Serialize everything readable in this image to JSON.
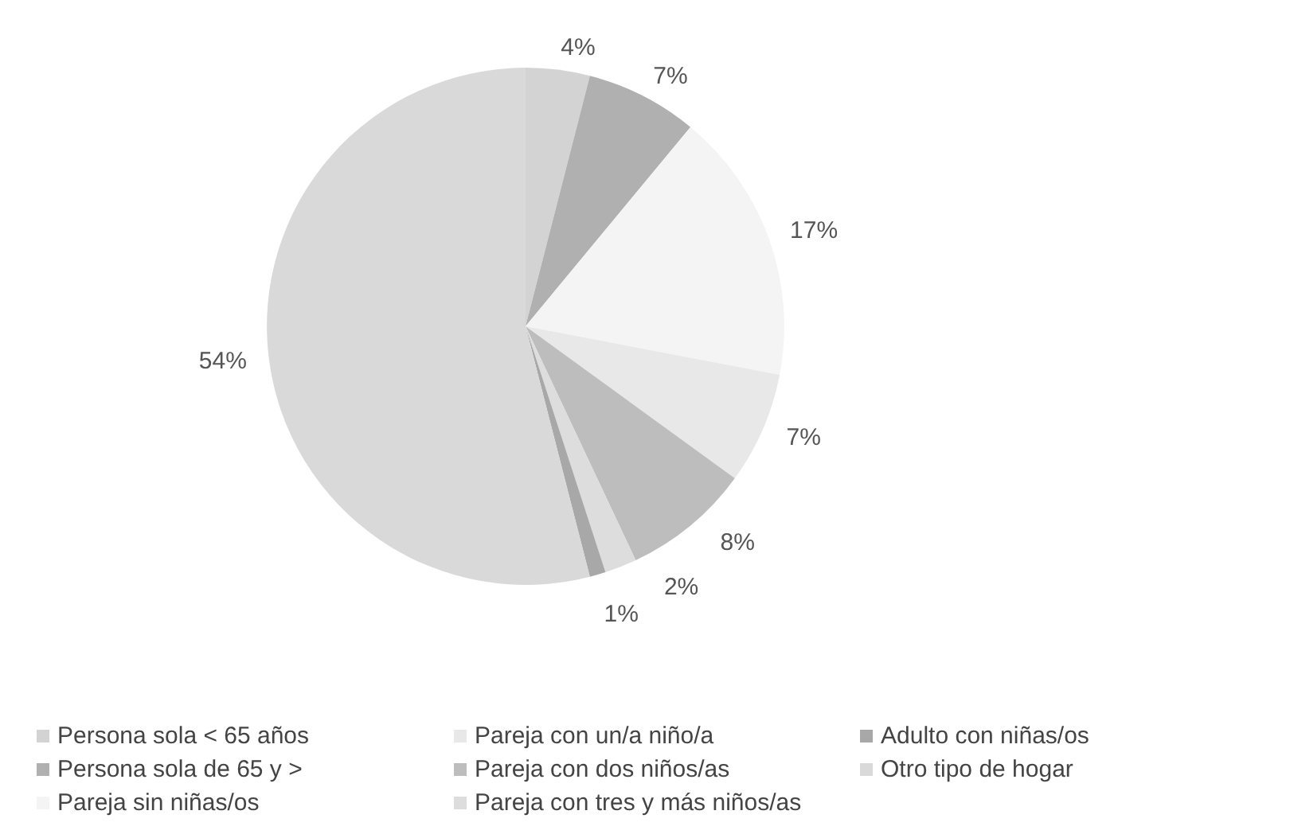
{
  "chart_data": {
    "type": "pie",
    "categories": [
      "Persona sola < 65 años",
      "Persona sola de 65 y >",
      "Pareja sin niñas/os",
      "Pareja con un/a niño/a",
      "Pareja con dos niños/as",
      "Pareja con tres y más niños/as",
      "Adulto con niñas/os",
      "Otro tipo de hogar"
    ],
    "values": [
      4,
      7,
      17,
      7,
      8,
      2,
      1,
      54
    ],
    "colors": [
      "#d3d3d3",
      "#b0b0b0",
      "#f4f4f4",
      "#e8e8e8",
      "#bdbdbd",
      "#dddddd",
      "#a8a8a8",
      "#d9d9d9"
    ],
    "value_labels": [
      "4%",
      "7%",
      "17%",
      "7%",
      "8%",
      "2%",
      "1%",
      "54%"
    ],
    "legend": "bottom"
  }
}
